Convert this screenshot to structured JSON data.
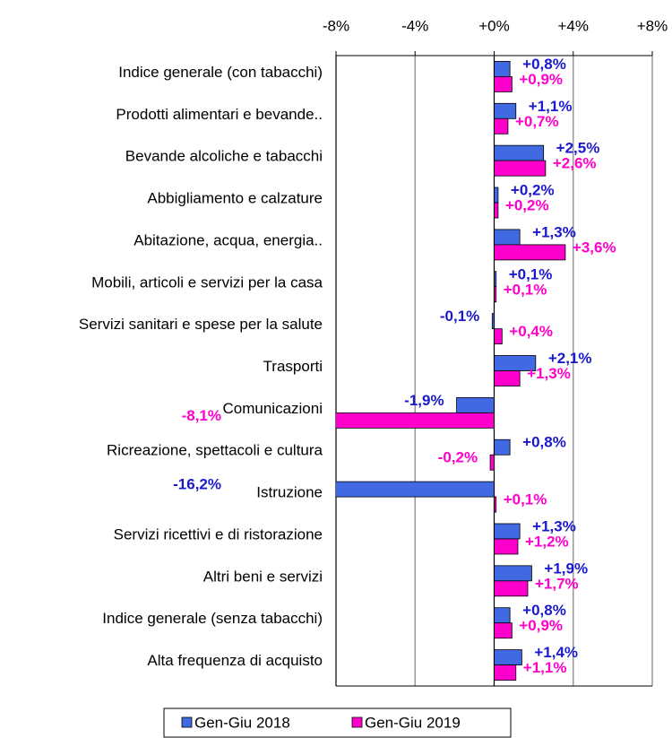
{
  "chart_data": {
    "type": "bar",
    "orientation": "horizontal",
    "categories": [
      "Indice generale (con tabacchi)",
      "Prodotti alimentari e bevande..",
      "Bevande alcoliche e tabacchi",
      "Abbigliamento e calzature",
      "Abitazione, acqua, energia..",
      "Mobili, articoli e servizi per la casa",
      "Servizi sanitari e spese per la salute",
      "Trasporti",
      "Comunicazioni",
      "Ricreazione, spettacoli e cultura",
      "Istruzione",
      "Servizi ricettivi e di ristorazione",
      "Altri beni e servizi",
      "Indice generale (senza tabacchi)",
      "Alta frequenza di acquisto"
    ],
    "series": [
      {
        "name": "Gen-Giu 2018",
        "color": "#4169e1",
        "label_color": "#1a1acc",
        "values": [
          0.8,
          1.1,
          2.5,
          0.2,
          1.3,
          0.1,
          -0.1,
          2.1,
          -1.9,
          0.8,
          -16.2,
          1.3,
          1.9,
          0.8,
          1.4
        ],
        "value_labels": [
          "+0,8%",
          "+1,1%",
          "+2,5%",
          "+0,2%",
          "+1,3%",
          "+0,1%",
          "-0,1%",
          "+2,1%",
          "-1,9%",
          "+0,8%",
          "-16,2%",
          "+1,3%",
          "+1,9%",
          "+0,8%",
          "+1,4%"
        ]
      },
      {
        "name": "Gen-Giu 2019",
        "color": "#ff00cc",
        "label_color": "#ff00cc",
        "values": [
          0.9,
          0.7,
          2.6,
          0.2,
          3.6,
          0.1,
          0.4,
          1.3,
          -8.1,
          -0.2,
          0.1,
          1.2,
          1.7,
          0.9,
          1.1
        ],
        "value_labels": [
          "+0,9%",
          "+0,7%",
          "+2,6%",
          "+0,2%",
          "+3,6%",
          "+0,1%",
          "+0,4%",
          "+1,3%",
          "-8,1%",
          "-0,2%",
          "+0,1%",
          "+1,2%",
          "+1,7%",
          "+0,9%",
          "+1,1%"
        ]
      }
    ],
    "xlim": [
      -8,
      8
    ],
    "xticks": [
      {
        "value": -8,
        "label": "-8%"
      },
      {
        "value": -4,
        "label": "-4%"
      },
      {
        "value": 0,
        "label": "+0%"
      },
      {
        "value": 4,
        "label": "+4%"
      },
      {
        "value": 8,
        "label": "+8%"
      }
    ],
    "grid": true,
    "legend": "bottom"
  }
}
